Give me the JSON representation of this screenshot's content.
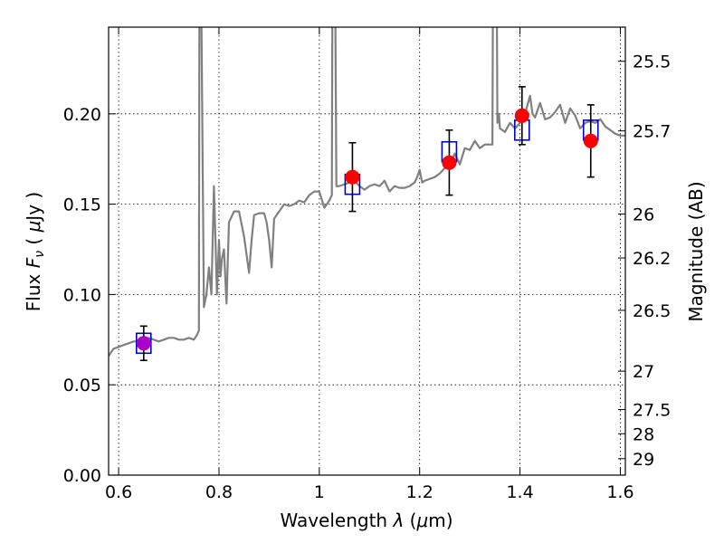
{
  "chart_data": {
    "type": "line",
    "title": "",
    "xlabel_parts": [
      "Wavelength  ",
      "λ",
      " (",
      "μ",
      "m)"
    ],
    "ylabel_parts": [
      "Flux  ",
      "F",
      "ν",
      "  ( ",
      "μ",
      "Jy )"
    ],
    "ylabel_right": "Magnitude (AB)",
    "xlim": [
      0.58,
      1.61
    ],
    "ylim": [
      0.0,
      0.248
    ],
    "x_ticks": [
      0.6,
      0.8,
      1.0,
      1.2,
      1.4,
      1.6
    ],
    "x_tick_labels": [
      "0.6",
      "0.8",
      "1",
      "1.2",
      "1.4",
      "1.6"
    ],
    "y_ticks": [
      0.0,
      0.05,
      0.1,
      0.15,
      0.2
    ],
    "y_tick_labels": [
      "0.00",
      "0.05",
      "0.10",
      "0.15",
      "0.20"
    ],
    "right_ticks": [
      {
        "mag": 25.5,
        "label": "25.5"
      },
      {
        "mag": 25.7,
        "label": "25.7"
      },
      {
        "mag": 26.0,
        "label": "26"
      },
      {
        "mag": 26.2,
        "label": "26.2"
      },
      {
        "mag": 26.5,
        "label": "26.5"
      },
      {
        "mag": 27.0,
        "label": "27"
      },
      {
        "mag": 27.5,
        "label": "27.5"
      },
      {
        "mag": 28.0,
        "label": "28"
      },
      {
        "mag": 29.0,
        "label": "29"
      }
    ],
    "grid": true,
    "colors": {
      "model": "#808080",
      "box": "#0000cc",
      "observed": "#ff0000",
      "observed_first": "#aa00cc",
      "errorbar": "#000000"
    },
    "model_spectrum": {
      "x": [
        0.58,
        0.59,
        0.6,
        0.61,
        0.62,
        0.63,
        0.64,
        0.65,
        0.66,
        0.67,
        0.68,
        0.69,
        0.7,
        0.71,
        0.72,
        0.73,
        0.74,
        0.75,
        0.755,
        0.76,
        0.761,
        0.762,
        0.765,
        0.77,
        0.775,
        0.78,
        0.785,
        0.79,
        0.793,
        0.796,
        0.8,
        0.803,
        0.806,
        0.81,
        0.815,
        0.82,
        0.83,
        0.84,
        0.85,
        0.86,
        0.865,
        0.87,
        0.88,
        0.89,
        0.895,
        0.9,
        0.905,
        0.91,
        0.92,
        0.93,
        0.94,
        0.95,
        0.96,
        0.97,
        0.98,
        0.99,
        1.0,
        1.01,
        1.02,
        1.025,
        1.026,
        1.028,
        1.03,
        1.032,
        1.034,
        1.04,
        1.05,
        1.06,
        1.07,
        1.08,
        1.09,
        1.1,
        1.11,
        1.12,
        1.13,
        1.14,
        1.15,
        1.16,
        1.17,
        1.18,
        1.19,
        1.195,
        1.2,
        1.205,
        1.21,
        1.22,
        1.23,
        1.24,
        1.25,
        1.26,
        1.27,
        1.28,
        1.29,
        1.3,
        1.31,
        1.32,
        1.33,
        1.34,
        1.345,
        1.346,
        1.347,
        1.35,
        1.354,
        1.355,
        1.358,
        1.36,
        1.37,
        1.38,
        1.39,
        1.4,
        1.41,
        1.42,
        1.425,
        1.43,
        1.44,
        1.45,
        1.46,
        1.47,
        1.48,
        1.49,
        1.5,
        1.51,
        1.52,
        1.53,
        1.54,
        1.55,
        1.56,
        1.57,
        1.58,
        1.59,
        1.6,
        1.61
      ],
      "y": [
        0.066,
        0.07,
        0.071,
        0.072,
        0.073,
        0.074,
        0.074,
        0.075,
        0.076,
        0.075,
        0.074,
        0.075,
        0.076,
        0.076,
        0.075,
        0.075,
        0.076,
        0.075,
        0.077,
        0.08,
        0.25,
        0.25,
        0.25,
        0.093,
        0.1,
        0.115,
        0.1,
        0.16,
        0.13,
        0.1,
        0.13,
        0.11,
        0.12,
        0.125,
        0.095,
        0.14,
        0.146,
        0.146,
        0.132,
        0.112,
        0.13,
        0.144,
        0.145,
        0.145,
        0.14,
        0.13,
        0.115,
        0.142,
        0.146,
        0.15,
        0.149,
        0.15,
        0.152,
        0.151,
        0.155,
        0.157,
        0.157,
        0.148,
        0.152,
        0.155,
        0.25,
        0.25,
        0.25,
        0.25,
        0.16,
        0.16,
        0.161,
        0.162,
        0.163,
        0.16,
        0.158,
        0.16,
        0.161,
        0.16,
        0.163,
        0.157,
        0.16,
        0.159,
        0.159,
        0.16,
        0.162,
        0.165,
        0.169,
        0.162,
        0.163,
        0.164,
        0.165,
        0.167,
        0.17,
        0.172,
        0.178,
        0.172,
        0.181,
        0.18,
        0.185,
        0.181,
        0.183,
        0.183,
        0.183,
        0.25,
        0.25,
        0.25,
        0.25,
        0.195,
        0.2,
        0.192,
        0.19,
        0.195,
        0.192,
        0.195,
        0.2,
        0.21,
        0.2,
        0.198,
        0.206,
        0.197,
        0.198,
        0.201,
        0.205,
        0.195,
        0.203,
        0.199,
        0.192,
        0.195,
        0.196,
        0.195,
        0.197,
        0.193,
        0.191,
        0.189,
        0.188,
        0.188
      ]
    },
    "model_boxes": [
      {
        "x": 0.65,
        "y": 0.073
      },
      {
        "x": 1.066,
        "y": 0.161
      },
      {
        "x": 1.259,
        "y": 0.179
      },
      {
        "x": 1.404,
        "y": 0.191
      },
      {
        "x": 1.541,
        "y": 0.191
      }
    ],
    "observed": [
      {
        "x": 0.65,
        "y": 0.073,
        "yerr": 0.0095
      },
      {
        "x": 1.066,
        "y": 0.165,
        "yerr": 0.019
      },
      {
        "x": 1.259,
        "y": 0.173,
        "yerr": 0.018
      },
      {
        "x": 1.404,
        "y": 0.199,
        "yerr": 0.016
      },
      {
        "x": 1.541,
        "y": 0.185,
        "yerr": 0.02
      }
    ]
  }
}
